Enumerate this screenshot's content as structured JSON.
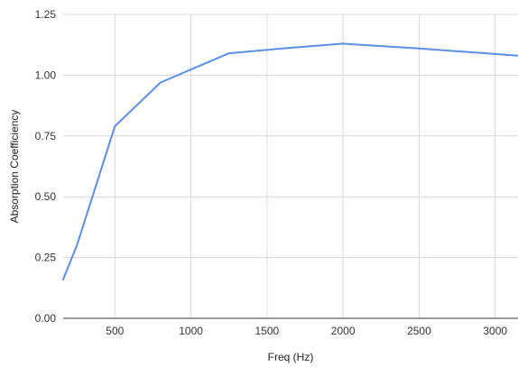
{
  "chart_data": {
    "type": "line",
    "xlabel": "Freq (Hz)",
    "ylabel": "Absorption Coefficiency",
    "xlim": [
      160,
      3150
    ],
    "ylim": [
      0,
      1.25
    ],
    "x_ticks": [
      500,
      1000,
      1500,
      2000,
      2500,
      3000
    ],
    "x_tick_labels": [
      "500",
      "1000",
      "1500",
      "2000",
      "2500",
      "3000"
    ],
    "y_ticks": [
      0,
      0.25,
      0.5,
      0.75,
      1.0,
      1.25
    ],
    "y_tick_labels": [
      "0.00",
      "0.25",
      "0.50",
      "0.75",
      "1.00",
      "1.25"
    ],
    "grid": true,
    "legend": "none",
    "series": [
      {
        "color": "#5b8ee6",
        "x": [
          160,
          250,
          500,
          800,
          1250,
          1600,
          2000,
          2500,
          3150
        ],
        "y": [
          0.16,
          0.3,
          0.79,
          0.97,
          1.09,
          1.11,
          1.13,
          1.11,
          1.08
        ]
      }
    ]
  }
}
